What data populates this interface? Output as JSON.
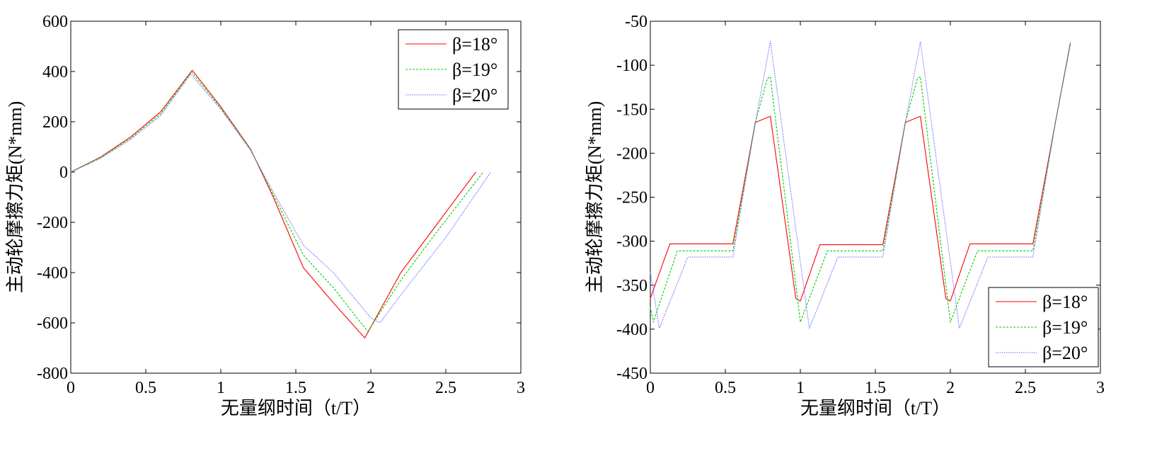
{
  "chart_data": [
    {
      "type": "line",
      "xlabel": "无量纲时间（t/T）",
      "ylabel": "主动轮摩擦力矩(N*mm)",
      "xlim": [
        0,
        3
      ],
      "ylim": [
        -800,
        600
      ],
      "xticks": [
        "0",
        "0.5",
        "1",
        "1.5",
        "2",
        "2.5",
        "3"
      ],
      "yticks": [
        "600",
        "400",
        "200",
        "0",
        "-200",
        "-400",
        "-600",
        "-800"
      ],
      "legend": "top-right",
      "grid": false,
      "series": [
        {
          "name": "β=18°",
          "color": "#ff0000",
          "style": "solid",
          "points": [
            [
              0,
              0
            ],
            [
              0.2,
              60
            ],
            [
              0.4,
              140
            ],
            [
              0.6,
              240
            ],
            [
              0.81,
              405
            ],
            [
              1.0,
              260
            ],
            [
              1.2,
              90
            ],
            [
              1.35,
              -100
            ],
            [
              1.55,
              -380
            ],
            [
              1.75,
              -520
            ],
            [
              1.96,
              -660
            ],
            [
              2.2,
              -400
            ],
            [
              2.45,
              -200
            ],
            [
              2.7,
              0
            ]
          ]
        },
        {
          "name": "β=19°",
          "color": "#00cc00",
          "style": "dashed",
          "points": [
            [
              0,
              0
            ],
            [
              0.2,
              58
            ],
            [
              0.4,
              135
            ],
            [
              0.6,
              232
            ],
            [
              0.805,
              398
            ],
            [
              1.0,
              255
            ],
            [
              1.2,
              88
            ],
            [
              1.35,
              -90
            ],
            [
              1.55,
              -330
            ],
            [
              1.75,
              -460
            ],
            [
              1.98,
              -635
            ],
            [
              2.2,
              -430
            ],
            [
              2.45,
              -230
            ],
            [
              2.75,
              0
            ]
          ]
        },
        {
          "name": "β=20°",
          "color": "#6666ff",
          "style": "dotted",
          "points": [
            [
              0,
              0
            ],
            [
              0.2,
              55
            ],
            [
              0.4,
              130
            ],
            [
              0.6,
              225
            ],
            [
              0.8,
              390
            ],
            [
              1.0,
              250
            ],
            [
              1.2,
              85
            ],
            [
              1.35,
              -80
            ],
            [
              1.55,
              -290
            ],
            [
              1.75,
              -400
            ],
            [
              2.0,
              -580
            ],
            [
              2.06,
              -600
            ],
            [
              2.25,
              -450
            ],
            [
              2.5,
              -260
            ],
            [
              2.8,
              0
            ]
          ]
        }
      ]
    },
    {
      "type": "line",
      "xlabel": "无量纲时间（t/T）",
      "ylabel": "主动轮摩擦力矩(N*mm)",
      "xlim": [
        0,
        3
      ],
      "ylim": [
        -450,
        -50
      ],
      "xticks": [
        "0",
        "0.5",
        "1",
        "1.5",
        "2",
        "2.5",
        "3"
      ],
      "yticks": [
        "-50",
        "-100",
        "-150",
        "-200",
        "-250",
        "-300",
        "-350",
        "-400",
        "-450"
      ],
      "legend": "bottom-right",
      "grid": false,
      "series": [
        {
          "name": "β=18°",
          "color": "#ff0000",
          "style": "solid",
          "points": [
            [
              0,
              -365
            ],
            [
              0.13,
              -303
            ],
            [
              0.55,
              -303
            ],
            [
              0.7,
              -165
            ],
            [
              0.8,
              -158
            ],
            [
              0.97,
              -365
            ],
            [
              1.0,
              -368
            ],
            [
              1.13,
              -304
            ],
            [
              1.55,
              -304
            ],
            [
              1.7,
              -165
            ],
            [
              1.8,
              -158
            ],
            [
              1.97,
              -365
            ],
            [
              2.0,
              -368
            ],
            [
              2.13,
              -303
            ],
            [
              2.55,
              -303
            ],
            [
              2.7,
              -165
            ],
            [
              2.8,
              -75
            ]
          ]
        },
        {
          "name": "β=19°",
          "color": "#00cc00",
          "style": "dashed",
          "points": [
            [
              0,
              -375
            ],
            [
              0.02,
              -392
            ],
            [
              0.18,
              -311
            ],
            [
              0.55,
              -311
            ],
            [
              0.7,
              -165
            ],
            [
              0.78,
              -115
            ],
            [
              0.8,
              -113
            ],
            [
              1.0,
              -392
            ],
            [
              1.18,
              -311
            ],
            [
              1.55,
              -311
            ],
            [
              1.7,
              -165
            ],
            [
              1.78,
              -115
            ],
            [
              1.8,
              -113
            ],
            [
              2.0,
              -392
            ],
            [
              2.18,
              -311
            ],
            [
              2.55,
              -311
            ],
            [
              2.7,
              -165
            ],
            [
              2.8,
              -75
            ]
          ]
        },
        {
          "name": "β=20°",
          "color": "#6666ff",
          "style": "dotted",
          "points": [
            [
              0,
              -335
            ],
            [
              0.06,
              -399
            ],
            [
              0.25,
              -318
            ],
            [
              0.55,
              -318
            ],
            [
              0.7,
              -165
            ],
            [
              0.8,
              -73
            ],
            [
              1.06,
              -399
            ],
            [
              1.25,
              -318
            ],
            [
              1.55,
              -318
            ],
            [
              1.7,
              -165
            ],
            [
              1.8,
              -73
            ],
            [
              2.06,
              -399
            ],
            [
              2.25,
              -318
            ],
            [
              2.55,
              -318
            ],
            [
              2.7,
              -165
            ],
            [
              2.8,
              -73
            ]
          ]
        }
      ]
    }
  ]
}
